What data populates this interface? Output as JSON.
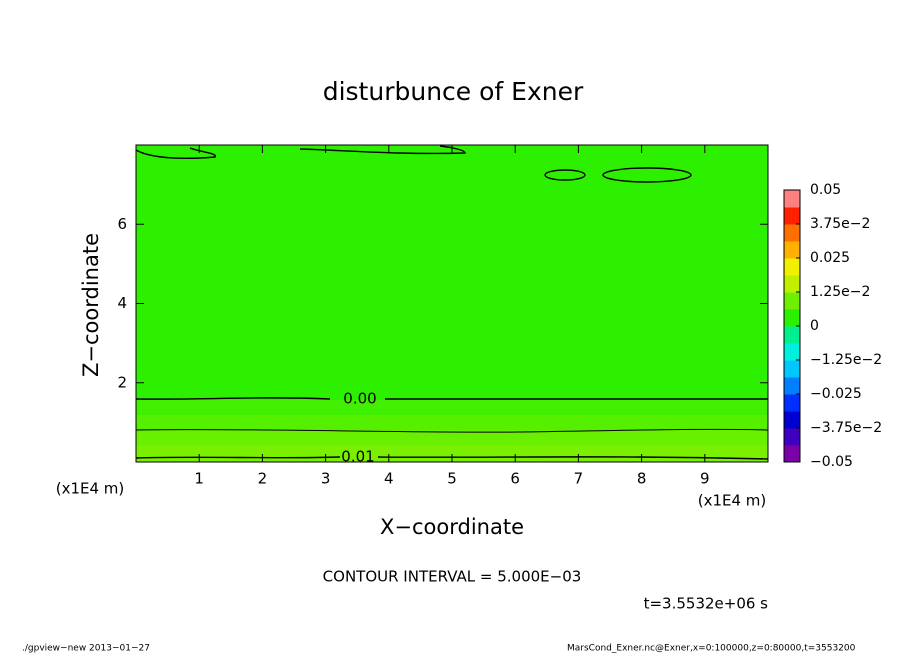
{
  "chart_data": {
    "type": "contour",
    "title": "disturbunce of Exner",
    "xlabel": "X−coordinate",
    "ylabel": "Z−coordinate",
    "x_unit": "(x1E4 m)",
    "xlim": [
      0,
      10
    ],
    "ylim": [
      0,
      8
    ],
    "xticks": [
      1,
      2,
      3,
      4,
      5,
      6,
      7,
      8,
      9
    ],
    "yticks": [
      2,
      4,
      6
    ],
    "contour_labels": [
      "0.00",
      "0.01"
    ],
    "clim": [
      -0.05,
      0.05
    ],
    "colorbar_ticks": [
      {
        "value": 0.05,
        "label": "0.05"
      },
      {
        "value": 0.0375,
        "label": "3.75e−2"
      },
      {
        "value": 0.025,
        "label": "0.025"
      },
      {
        "value": 0.0125,
        "label": "1.25e−2"
      },
      0,
      {
        "value": -0.0125,
        "label": "−1.25e−2"
      },
      {
        "value": -0.025,
        "label": "−0.025"
      },
      {
        "value": -0.0375,
        "label": "−3.75e−2"
      },
      {
        "value": -0.05,
        "label": "−0.05"
      }
    ],
    "colorbar_colors": [
      "#7a00a8",
      "#4000c0",
      "#0000d0",
      "#0030ff",
      "#0080ff",
      "#00c8ff",
      "#00f0e0",
      "#00f090",
      "#2cf000",
      "#70f000",
      "#c0f000",
      "#f0f000",
      "#ffb000",
      "#ff7000",
      "#ff2000",
      "#ff8080"
    ],
    "contour_interval": "CONTOUR INTERVAL = 5.000E−03",
    "time_label": "t=3.5532e+06 s",
    "footer_left": "./gpview−new   2013−01−27",
    "footer_right": "MarsCond_Exner.nc@Exner,x=0:100000,z=0:80000,t=3553200"
  }
}
